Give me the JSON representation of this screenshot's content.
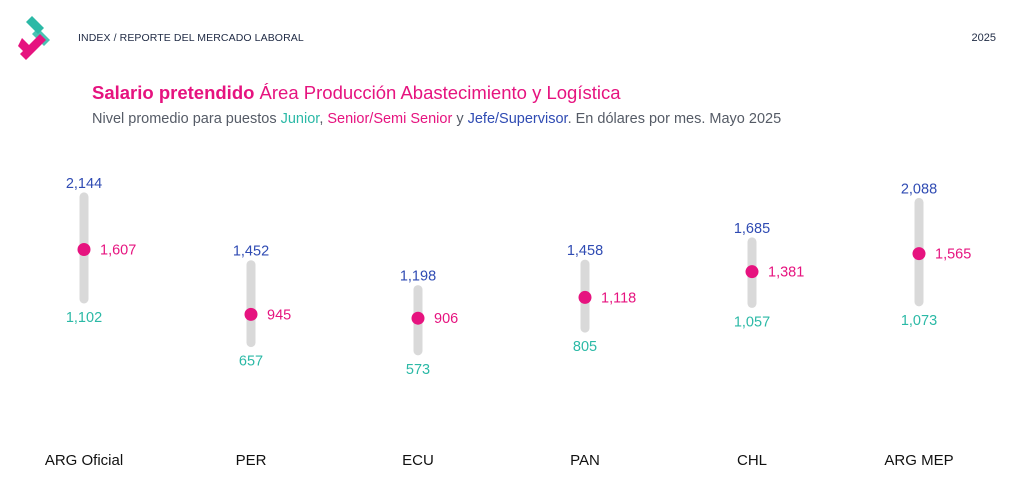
{
  "header": {
    "breadcrumb": "INDEX / REPORTE DEL MERCADO LABORAL",
    "year": "2025"
  },
  "title": {
    "bold": "Salario pretendido",
    "rest": " Área Producción Abastecimiento y Logística"
  },
  "subtitle": {
    "prefix": "Nivel promedio para puestos ",
    "junior": "Junior",
    "sep1": ", ",
    "senior": "Senior/Semi Senior",
    "sep2": " y ",
    "jefe": "Jefe/Supervisor",
    "suffix": ". En dólares por mes. Mayo 2025"
  },
  "colors": {
    "junior": "#2bb9a6",
    "senior": "#e6137f",
    "jefe": "#2f4bb3",
    "bar": "#d9d9d9"
  },
  "chart_data": {
    "type": "range-dot",
    "categories": [
      "ARG Oficial",
      "PER",
      "ECU",
      "PAN",
      "CHL",
      "ARG MEP"
    ],
    "series": [
      {
        "name": "Junior",
        "values": [
          1102,
          657,
          573,
          805,
          1057,
          1073
        ]
      },
      {
        "name": "Senior/Semi Senior",
        "values": [
          1607,
          945,
          906,
          1118,
          1381,
          1565
        ]
      },
      {
        "name": "Jefe/Supervisor",
        "values": [
          2144,
          1452,
          1198,
          1458,
          1685,
          2088
        ]
      }
    ],
    "labels": {
      "junior": [
        "1,102",
        "657",
        "573",
        "805",
        "1,057",
        "1,073"
      ],
      "senior": [
        "1,607",
        "945",
        "906",
        "1,118",
        "1,381",
        "1,565"
      ],
      "jefe": [
        "2,144",
        "1,452",
        "1,198",
        "1,458",
        "1,685",
        "2,088"
      ]
    },
    "unit": "USD por mes"
  }
}
